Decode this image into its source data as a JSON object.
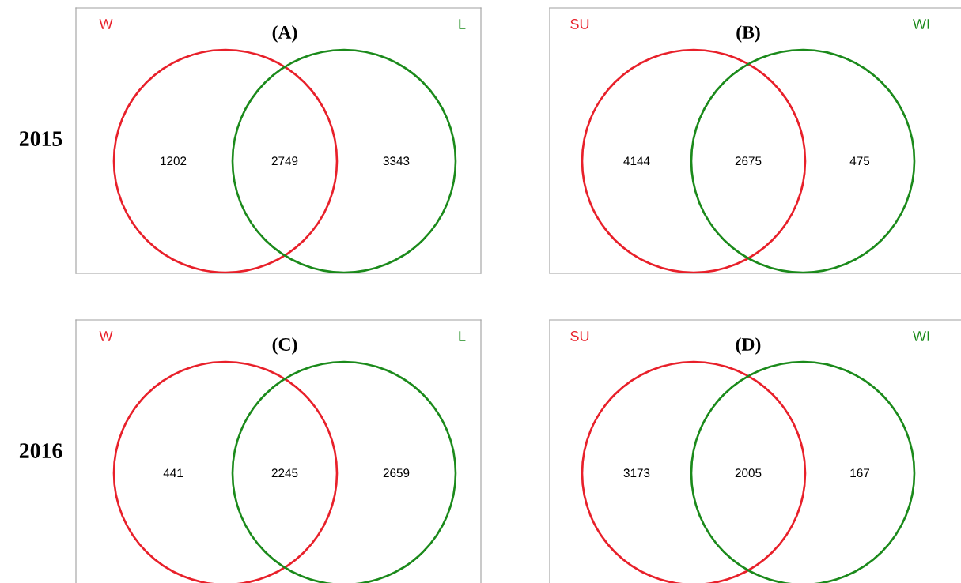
{
  "chart_data": [
    {
      "type": "other",
      "title": "(A)",
      "ylabel": "2015",
      "annotations": [
        "W",
        "L"
      ],
      "colors": [
        "#e8202a",
        null,
        "#1b8a1b"
      ],
      "categories": [
        null,
        null,
        null
      ],
      "values": [
        1202,
        2749,
        3343
      ],
      "value_labels": [
        "1202",
        "2749",
        "3343"
      ],
      "data_labels": true
    },
    {
      "type": "other",
      "title": "(B)",
      "annotations": [
        "SU",
        "WI"
      ],
      "colors": [
        "#e8202a",
        null,
        "#1b8a1b"
      ],
      "categories": [
        null,
        null,
        null
      ],
      "values": [
        4144,
        2675,
        475
      ],
      "value_labels": [
        "4144",
        "2675",
        "475"
      ],
      "data_labels": true
    },
    {
      "type": "other",
      "title": "(C)",
      "ylabel": "2016",
      "annotations": [
        "W",
        "L"
      ],
      "colors": [
        "#e8202a",
        null,
        "#1b8a1b"
      ],
      "categories": [
        null,
        null,
        null
      ],
      "values": [
        441,
        2245,
        2659
      ],
      "value_labels": [
        "441",
        "2245",
        "2659"
      ],
      "data_labels": true
    },
    {
      "type": "other",
      "title": "(D)",
      "annotations": [
        "SU",
        "WI"
      ],
      "colors": [
        "#e8202a",
        null,
        "#1b8a1b"
      ],
      "categories": [
        null,
        null,
        null
      ],
      "values": [
        3173,
        2005,
        167
      ],
      "value_labels": [
        "3173",
        "2005",
        "167"
      ],
      "data_labels": true
    }
  ]
}
